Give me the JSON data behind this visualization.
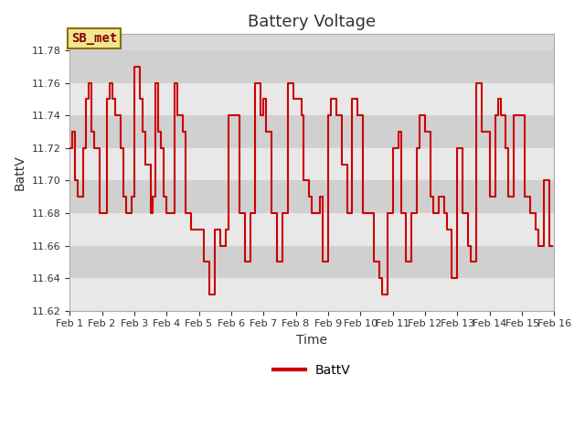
{
  "title": "Battery Voltage",
  "xlabel": "Time",
  "ylabel": "BattV",
  "legend_label": "BattV",
  "annotation_text": "SB_met",
  "ylim": [
    11.62,
    11.79
  ],
  "line_color": "#cc0000",
  "bg_color": "#d8d8d8",
  "band_color_light": "#e8e8e8",
  "band_color_dark": "#d0d0d0",
  "annotation_bg": "#f0e890",
  "annotation_edge": "#8b7000",
  "annotation_text_color": "#8b0000",
  "x_ticks": [
    1,
    2,
    3,
    4,
    5,
    6,
    7,
    8,
    9,
    10,
    11,
    12,
    13,
    14,
    15,
    16
  ],
  "x_tick_labels": [
    "Feb 1",
    "Feb 2",
    "Feb 3",
    "Feb 4",
    "Feb 5",
    "Feb 6",
    "Feb 7",
    "Feb 8",
    "Feb 9",
    "Feb 10",
    "Feb 11",
    "Feb 12",
    "Feb 13",
    "Feb 14",
    "Feb 15",
    "Feb 16"
  ],
  "yticks": [
    11.62,
    11.64,
    11.66,
    11.68,
    11.7,
    11.72,
    11.74,
    11.76,
    11.78
  ],
  "data_x": [
    1.0,
    1.083,
    1.167,
    1.25,
    1.333,
    1.417,
    1.5,
    1.583,
    1.667,
    1.75,
    1.833,
    1.917,
    2.0,
    2.083,
    2.167,
    2.25,
    2.333,
    2.417,
    2.5,
    2.583,
    2.667,
    2.75,
    2.833,
    2.917,
    3.0,
    3.083,
    3.167,
    3.25,
    3.333,
    3.417,
    3.5,
    3.583,
    3.667,
    3.75,
    3.833,
    3.917,
    4.0,
    4.083,
    4.167,
    4.25,
    4.333,
    4.417,
    4.5,
    4.583,
    4.667,
    4.75,
    4.833,
    4.917,
    5.0,
    5.083,
    5.167,
    5.25,
    5.333,
    5.417,
    5.5,
    5.583,
    5.667,
    5.75,
    5.833,
    5.917,
    6.0,
    6.083,
    6.167,
    6.25,
    6.333,
    6.417,
    6.5,
    6.583,
    6.667,
    6.75,
    6.833,
    6.917,
    7.0,
    7.083,
    7.167,
    7.25,
    7.333,
    7.417,
    7.5,
    7.583,
    7.667,
    7.75,
    7.833,
    7.917,
    8.0,
    8.083,
    8.167,
    8.25,
    8.333,
    8.417,
    8.5,
    8.583,
    8.667,
    8.75,
    8.833,
    8.917,
    9.0,
    9.083,
    9.167,
    9.25,
    9.333,
    9.417,
    9.5,
    9.583,
    9.667,
    9.75,
    9.833,
    9.917,
    10.0,
    10.083,
    10.167,
    10.25,
    10.333,
    10.417,
    10.5,
    10.583,
    10.667,
    10.75,
    10.833,
    10.917,
    11.0,
    11.083,
    11.167,
    11.25,
    11.333,
    11.417,
    11.5,
    11.583,
    11.667,
    11.75,
    11.833,
    11.917,
    12.0,
    12.083,
    12.167,
    12.25,
    12.333,
    12.417,
    12.5,
    12.583,
    12.667,
    12.75,
    12.833,
    12.917,
    13.0,
    13.083,
    13.167,
    13.25,
    13.333,
    13.417,
    13.5,
    13.583,
    13.667,
    13.75,
    13.833,
    13.917,
    14.0,
    14.083,
    14.167,
    14.25,
    14.333,
    14.417,
    14.5,
    14.583,
    14.667,
    14.75,
    14.833,
    14.917,
    15.0,
    15.083,
    15.167,
    15.25,
    15.333,
    15.417,
    15.5,
    15.583,
    15.667,
    15.75,
    15.833,
    15.917
  ],
  "data_y": [
    11.72,
    11.73,
    11.7,
    11.69,
    11.69,
    11.72,
    11.75,
    11.76,
    11.73,
    11.72,
    11.72,
    11.68,
    11.68,
    11.68,
    11.75,
    11.76,
    11.75,
    11.74,
    11.74,
    11.72,
    11.69,
    11.68,
    11.68,
    11.69,
    11.77,
    11.77,
    11.75,
    11.73,
    11.71,
    11.71,
    11.68,
    11.69,
    11.76,
    11.73,
    11.72,
    11.69,
    11.68,
    11.68,
    11.68,
    11.76,
    11.74,
    11.74,
    11.73,
    11.68,
    11.68,
    11.67,
    11.67,
    11.67,
    11.67,
    11.67,
    11.65,
    11.65,
    11.63,
    11.63,
    11.67,
    11.67,
    11.66,
    11.66,
    11.67,
    11.74,
    11.74,
    11.74,
    11.74,
    11.68,
    11.68,
    11.65,
    11.65,
    11.68,
    11.68,
    11.76,
    11.76,
    11.74,
    11.75,
    11.73,
    11.73,
    11.68,
    11.68,
    11.65,
    11.65,
    11.68,
    11.68,
    11.76,
    11.76,
    11.75,
    11.75,
    11.75,
    11.74,
    11.7,
    11.7,
    11.69,
    11.68,
    11.68,
    11.68,
    11.69,
    11.65,
    11.65,
    11.74,
    11.75,
    11.75,
    11.74,
    11.74,
    11.71,
    11.71,
    11.68,
    11.68,
    11.75,
    11.75,
    11.74,
    11.74,
    11.68,
    11.68,
    11.68,
    11.68,
    11.65,
    11.65,
    11.64,
    11.63,
    11.63,
    11.68,
    11.68,
    11.72,
    11.72,
    11.73,
    11.68,
    11.68,
    11.65,
    11.65,
    11.68,
    11.68,
    11.72,
    11.74,
    11.74,
    11.73,
    11.73,
    11.69,
    11.68,
    11.68,
    11.69,
    11.69,
    11.68,
    11.67,
    11.67,
    11.64,
    11.64,
    11.72,
    11.72,
    11.68,
    11.68,
    11.66,
    11.65,
    11.65,
    11.76,
    11.76,
    11.73,
    11.73,
    11.73,
    11.69,
    11.69,
    11.74,
    11.75,
    11.74,
    11.74,
    11.72,
    11.69,
    11.69,
    11.74,
    11.74,
    11.74,
    11.74,
    11.69,
    11.69,
    11.68,
    11.68,
    11.67,
    11.66,
    11.66,
    11.7,
    11.7,
    11.66,
    11.66
  ]
}
